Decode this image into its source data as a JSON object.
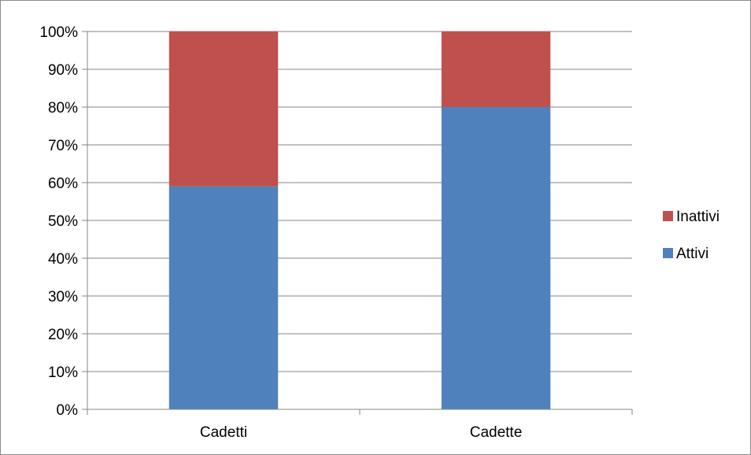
{
  "chart_data": {
    "type": "bar",
    "stacked": true,
    "percent_stacked": true,
    "categories": [
      "Cadetti",
      "Cadette"
    ],
    "series": [
      {
        "name": "Attivi",
        "values": [
          59,
          80
        ],
        "color": "#4F81BD"
      },
      {
        "name": "Inattivi",
        "values": [
          41,
          20
        ],
        "color": "#C0504D"
      }
    ],
    "ylim": [
      0,
      100
    ],
    "y_ticks": [
      "0%",
      "10%",
      "20%",
      "30%",
      "40%",
      "50%",
      "60%",
      "70%",
      "80%",
      "90%",
      "100%"
    ],
    "grid": true,
    "legend_position": "right",
    "legend_order": [
      "Inattivi",
      "Attivi"
    ]
  },
  "colors": {
    "gridline": "#868686",
    "axis": "#868686"
  }
}
